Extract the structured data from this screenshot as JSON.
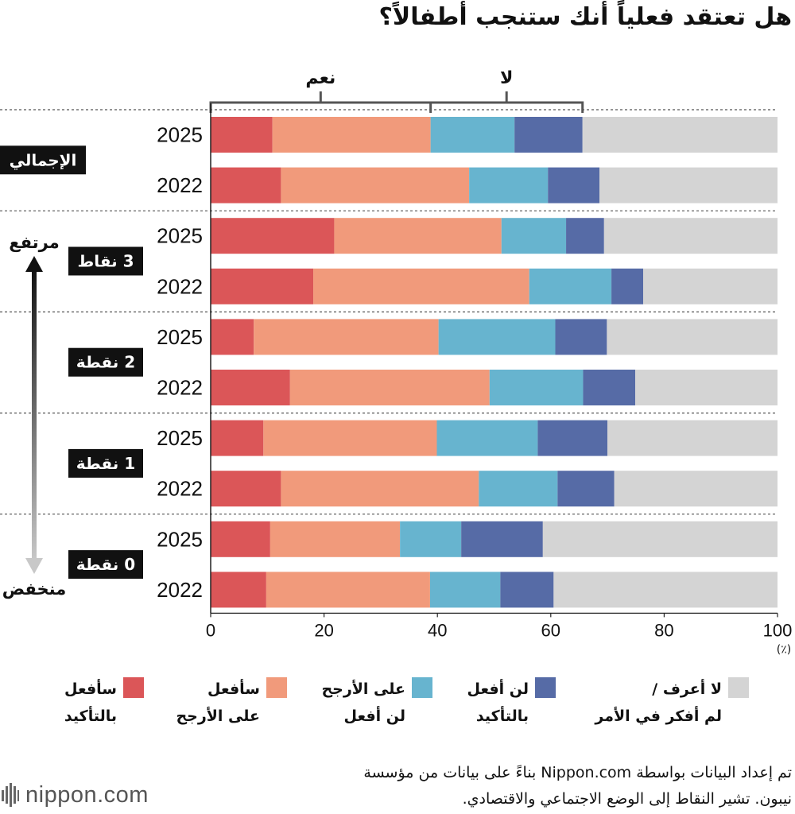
{
  "title": "هل تعتقد فعلياً أنك ستنجب أطفالاً؟",
  "colors": {
    "definitely_will": "#db5658",
    "probably_will": "#f19a7b",
    "probably_wont": "#67b4cf",
    "definitely_wont": "#566ba6",
    "dont_know": "#d4d4d4"
  },
  "chart_data": {
    "type": "bar",
    "orientation": "horizontal",
    "stacked": true,
    "xlim": [
      0,
      100
    ],
    "x_ticks": [
      "0",
      "20",
      "40",
      "60",
      "80",
      "100"
    ],
    "x_unit": "(٪)",
    "bracket_yes_label": "نعم",
    "bracket_no_label": "لا",
    "scale_high_label": "مرتفع",
    "scale_low_label": "منخفض",
    "series": [
      {
        "name": "سأفعل بالتأكيد",
        "key": "definitely_will"
      },
      {
        "name": "سأفعل على الأرجح",
        "key": "probably_will"
      },
      {
        "name": "على الأرجح لن أفعل",
        "key": "probably_wont"
      },
      {
        "name": "لن أفعل بالتأكيد",
        "key": "definitely_wont"
      },
      {
        "name": "لا أعرف / لم أفكر في الأمر",
        "key": "dont_know"
      }
    ],
    "groups": [
      {
        "label": "الإجمالي",
        "rows": [
          {
            "year": "2025",
            "values": [
              10.9,
              27.9,
              14.8,
              12.0,
              34.4
            ]
          },
          {
            "year": "2022",
            "values": [
              12.4,
              33.2,
              13.9,
              9.1,
              31.4
            ]
          }
        ]
      },
      {
        "label": "3 نقاط",
        "rows": [
          {
            "year": "2025",
            "values": [
              21.8,
              29.5,
              11.4,
              6.7,
              30.6
            ]
          },
          {
            "year": "2022",
            "values": [
              18.1,
              38.1,
              14.5,
              5.6,
              23.7
            ]
          }
        ]
      },
      {
        "label": "2 نقطة",
        "rows": [
          {
            "year": "2025",
            "values": [
              7.6,
              32.6,
              20.6,
              9.1,
              30.1
            ]
          },
          {
            "year": "2022",
            "values": [
              14.0,
              35.2,
              16.5,
              9.2,
              25.1
            ]
          }
        ]
      },
      {
        "label": "1 نقطة",
        "rows": [
          {
            "year": "2025",
            "values": [
              9.3,
              30.6,
              17.8,
              12.3,
              30.0
            ]
          },
          {
            "year": "2022",
            "values": [
              12.4,
              34.9,
              13.9,
              10.0,
              28.8
            ]
          }
        ]
      },
      {
        "label": "0 نقطة",
        "rows": [
          {
            "year": "2025",
            "values": [
              10.5,
              22.9,
              10.8,
              14.4,
              41.4
            ]
          },
          {
            "year": "2022",
            "values": [
              9.8,
              28.9,
              12.4,
              9.4,
              39.5
            ]
          }
        ]
      }
    ]
  },
  "legend": [
    {
      "key": "definitely_will",
      "line1": "سأفعل",
      "line2": "بالتأكيد"
    },
    {
      "key": "probably_will",
      "line1": "سأفعل",
      "line2": "على الأرجح"
    },
    {
      "key": "probably_wont",
      "line1": "على الأرجح",
      "line2": "لن أفعل"
    },
    {
      "key": "definitely_wont",
      "line1": "لن أفعل",
      "line2": "بالتأكيد"
    },
    {
      "key": "dont_know",
      "line1": "لا أعرف /",
      "line2": "لم أفكر في الأمر"
    }
  ],
  "notes": {
    "line1": "تم إعداد البيانات بواسطة Nippon.com بناءً على بيانات من مؤسسة",
    "line2": "نيبون. تشير النقاط إلى الوضع الاجتماعي والاقتصادي."
  },
  "logo": {
    "text": "nippon.com"
  }
}
